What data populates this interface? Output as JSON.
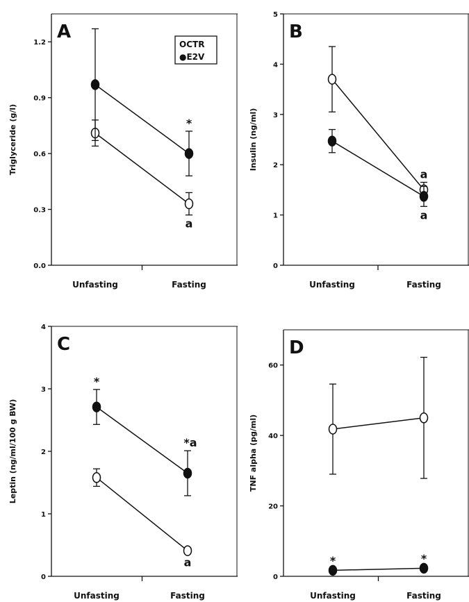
{
  "chart_data": [
    {
      "type": "line",
      "panel": "A",
      "ylabel": "Triglyceride (g/l)",
      "categories": [
        "Unfasting",
        "Fasting"
      ],
      "yticks": [
        "0.0",
        "0.3",
        "0.6",
        "0.9",
        "1.2"
      ],
      "ylim": [
        0,
        1.35
      ],
      "legend": {
        "position": "top-right",
        "entries": [
          "CTR",
          "E2V"
        ]
      },
      "series": [
        {
          "name": "CTR",
          "marker": "open-circle",
          "values": [
            0.71,
            0.33
          ],
          "errors": [
            0.07,
            0.06
          ]
        },
        {
          "name": "E2V",
          "marker": "filled-circle",
          "values": [
            0.97,
            0.6
          ],
          "errors": [
            0.3,
            0.12
          ]
        }
      ],
      "annotations": [
        {
          "text": "*",
          "category": 1,
          "series": "E2V",
          "position": "above"
        },
        {
          "text": "a",
          "category": 1,
          "series": "CTR",
          "position": "below"
        }
      ]
    },
    {
      "type": "line",
      "panel": "B",
      "ylabel": "Insulin (ng/ml)",
      "categories": [
        "Unfasting",
        "Fasting"
      ],
      "yticks": [
        "0",
        "1",
        "2",
        "3",
        "4",
        "5"
      ],
      "ylim": [
        0,
        5
      ],
      "series": [
        {
          "name": "CTR",
          "marker": "open-circle",
          "values": [
            3.7,
            1.5
          ],
          "errors": [
            0.65,
            0.15
          ]
        },
        {
          "name": "E2V",
          "marker": "filled-circle",
          "values": [
            2.47,
            1.37
          ],
          "errors": [
            0.23,
            0.2
          ]
        }
      ],
      "annotations": [
        {
          "text": "a",
          "category": 1,
          "series": "CTR",
          "position": "above"
        },
        {
          "text": "a",
          "category": 1,
          "series": "E2V",
          "position": "below"
        }
      ]
    },
    {
      "type": "line",
      "panel": "C",
      "ylabel": "Leptin (ng/ml/100 g BW)",
      "categories": [
        "Unfasting",
        "Fasting"
      ],
      "yticks": [
        "0",
        "1",
        "2",
        "3",
        "4"
      ],
      "ylim": [
        0,
        4
      ],
      "series": [
        {
          "name": "CTR",
          "marker": "open-circle",
          "values": [
            1.58,
            0.41
          ],
          "errors": [
            0.14,
            0.05
          ]
        },
        {
          "name": "E2V",
          "marker": "filled-circle",
          "values": [
            2.71,
            1.65
          ],
          "errors": [
            0.28,
            0.36
          ]
        }
      ],
      "annotations": [
        {
          "text": "*",
          "category": 0,
          "series": "E2V",
          "position": "above"
        },
        {
          "text": "*a",
          "category": 1,
          "series": "E2V",
          "position": "above"
        },
        {
          "text": "a",
          "category": 1,
          "series": "CTR",
          "position": "below"
        }
      ]
    },
    {
      "type": "line",
      "panel": "D",
      "ylabel": "TNF alpha (pg/ml)",
      "categories": [
        "Unfasting",
        "Fasting"
      ],
      "yticks": [
        "0",
        "20",
        "40",
        "60"
      ],
      "ylim": [
        0,
        70
      ],
      "series": [
        {
          "name": "CTR",
          "marker": "open-circle",
          "values": [
            41.8,
            45.0
          ],
          "errors": [
            12.8,
            17.2
          ]
        },
        {
          "name": "E2V",
          "marker": "filled-circle",
          "values": [
            1.7,
            2.3
          ],
          "errors": [
            0.5,
            0.5
          ]
        }
      ],
      "annotations": [
        {
          "text": "*",
          "category": 0,
          "series": "E2V",
          "position": "above"
        },
        {
          "text": "*",
          "category": 1,
          "series": "E2V",
          "position": "above"
        }
      ]
    }
  ],
  "legend_symbols": {
    "CTR": "O",
    "E2V": "●"
  },
  "colors": {
    "ink": "#111111",
    "background": "#ffffff"
  }
}
